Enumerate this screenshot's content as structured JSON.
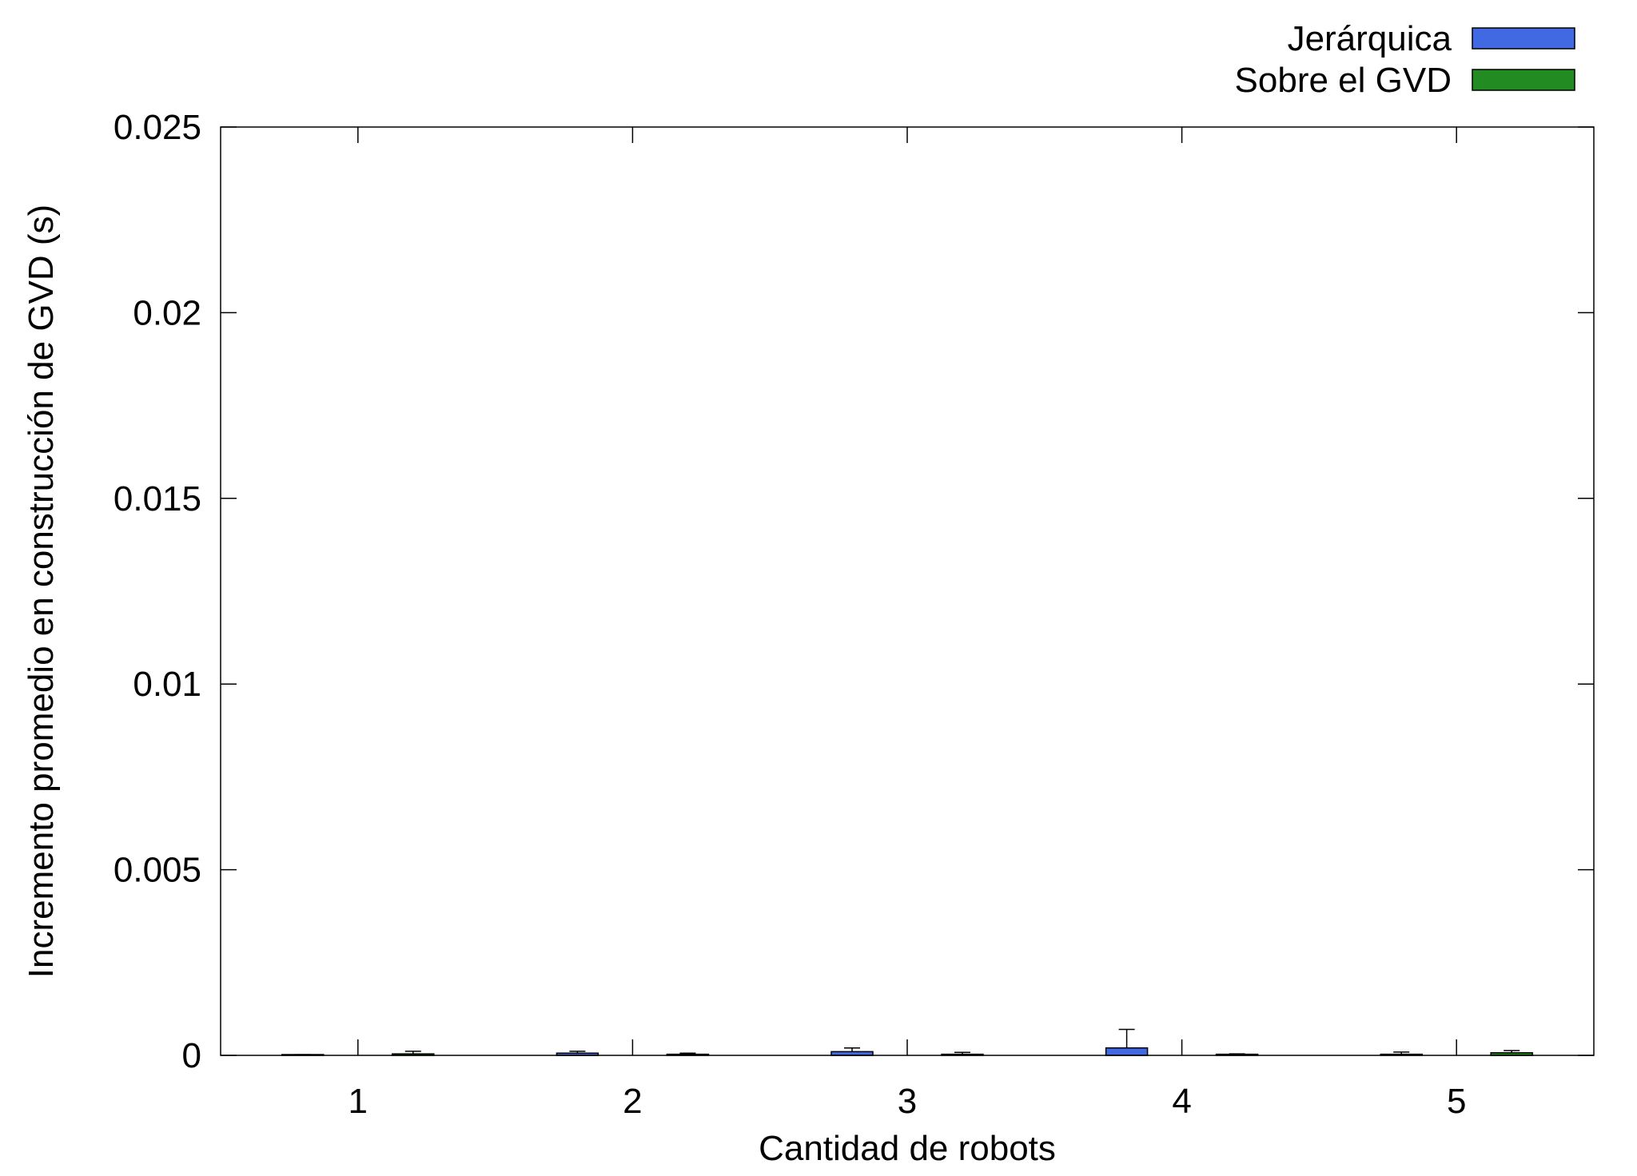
{
  "chart_data": {
    "type": "bar",
    "title": "",
    "xlabel": "Cantidad de robots",
    "ylabel": "Incremento promedio en construcción de GVD (s)",
    "categories": [
      "1",
      "2",
      "3",
      "4",
      "5"
    ],
    "ylim": [
      0,
      0.025
    ],
    "yticks": [
      "0",
      "0.005",
      "0.01",
      "0.015",
      "0.02",
      "0.025"
    ],
    "grid": false,
    "legend_position": "top-right",
    "series": [
      {
        "name": "Jerárquica",
        "color": "#4169e1",
        "values": [
          1e-05,
          6e-05,
          0.0001,
          0.0002,
          3e-05
        ],
        "error": [
          1e-05,
          5e-05,
          0.0001,
          0.0005,
          6e-05
        ]
      },
      {
        "name": "Sobre el GVD",
        "color": "#228b22",
        "values": [
          4e-05,
          3e-05,
          3e-05,
          3e-05,
          7e-05
        ],
        "error": [
          7e-05,
          3e-05,
          5e-05,
          1e-05,
          6e-05
        ]
      }
    ]
  }
}
